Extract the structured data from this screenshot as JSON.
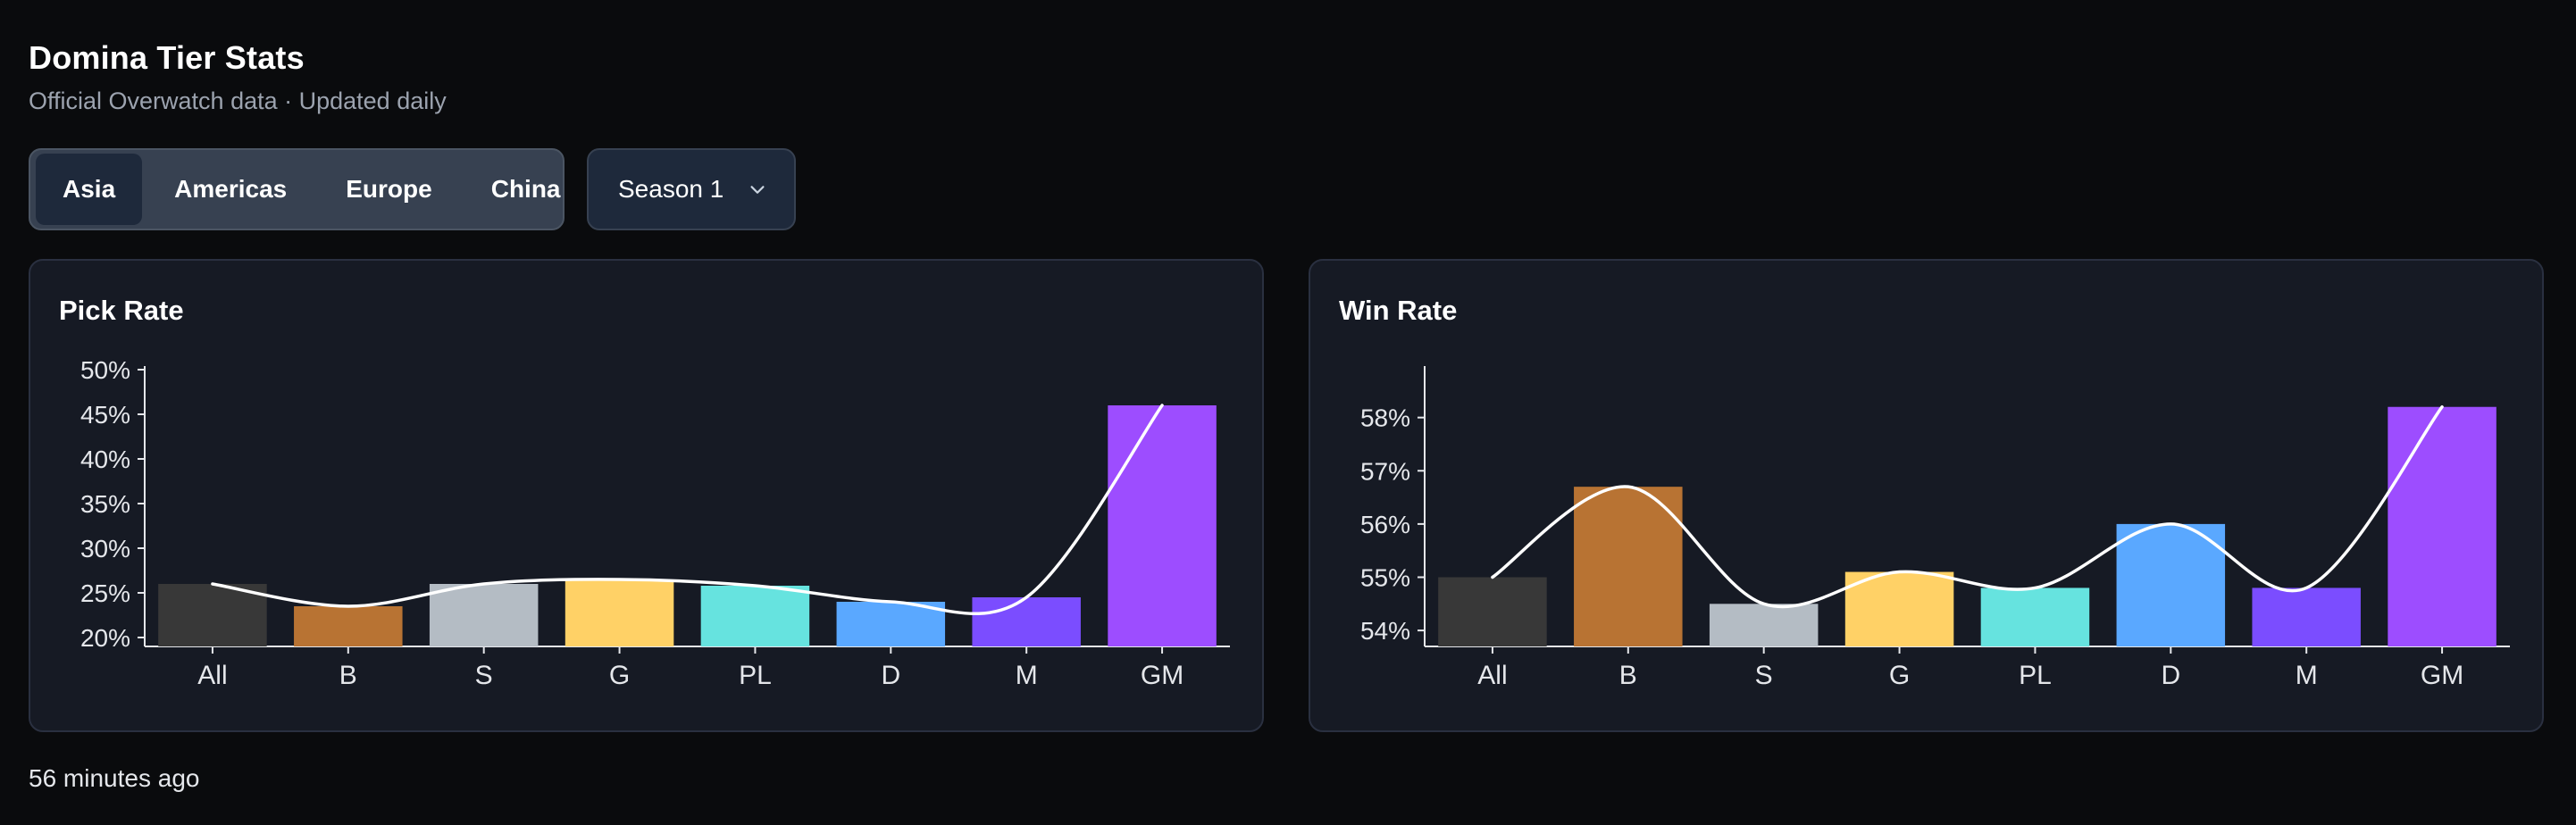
{
  "header": {
    "title": "Domina Tier Stats",
    "subtitle": "Official Overwatch data · Updated daily"
  },
  "region_tabs": [
    {
      "label": "Asia",
      "active": true
    },
    {
      "label": "Americas",
      "active": false
    },
    {
      "label": "Europe",
      "active": false
    },
    {
      "label": "China",
      "active": false
    }
  ],
  "season_select": {
    "selected": "Season 1"
  },
  "footer": {
    "updated": "56 minutes ago"
  },
  "colors": {
    "All": "#383838",
    "B": "#b87333",
    "S": "#b4bcc4",
    "G": "#ffd166",
    "PL": "#66e3df",
    "D": "#5aa8ff",
    "M": "#7b4dff",
    "GM": "#9d4dff",
    "trend_line": "#ffffff"
  },
  "cards": {
    "pick": {
      "title": "Pick Rate"
    },
    "win": {
      "title": "Win Rate"
    }
  },
  "chart_data": [
    {
      "type": "bar",
      "title": "Pick Rate",
      "categories": [
        "All",
        "B",
        "S",
        "G",
        "PL",
        "D",
        "M",
        "GM"
      ],
      "values": [
        26,
        23.5,
        26,
        26.5,
        25.8,
        24,
        24.5,
        46
      ],
      "ylim": [
        19,
        50
      ],
      "yticks": [
        20,
        25,
        30,
        35,
        40,
        45,
        50
      ],
      "ytick_labels": [
        "20%",
        "25%",
        "30%",
        "35%",
        "40%",
        "45%",
        "50%"
      ],
      "trend_line": true
    },
    {
      "type": "bar",
      "title": "Win Rate",
      "categories": [
        "All",
        "B",
        "S",
        "G",
        "PL",
        "D",
        "M",
        "GM"
      ],
      "values": [
        55.0,
        56.7,
        54.5,
        55.1,
        54.8,
        56.0,
        54.8,
        58.2
      ],
      "ylim": [
        53.7,
        58.9
      ],
      "yticks": [
        54,
        55,
        56,
        57,
        58
      ],
      "ytick_labels": [
        "54%",
        "55%",
        "56%",
        "57%",
        "58%"
      ],
      "trend_line": true
    }
  ]
}
